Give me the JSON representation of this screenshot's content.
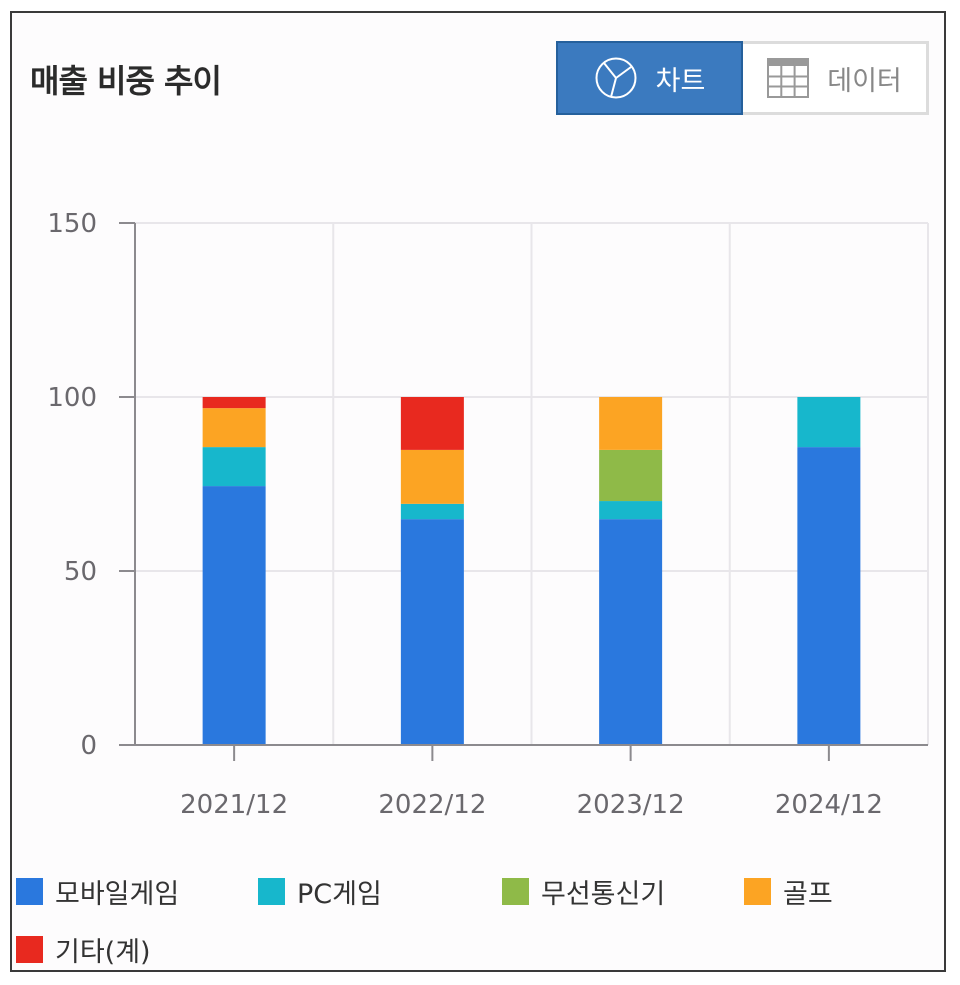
{
  "header": {
    "title": "매출 비중 추이",
    "toggle": {
      "chart_label": "차트",
      "data_label": "데이터",
      "active": "chart"
    }
  },
  "colors": {
    "모바일게임": "#2a78de",
    "PC게임": "#17b7cc",
    "무선통신기": "#8fba48",
    "골프": "#fca423",
    "기타(계)": "#e8291f",
    "accent": "#3b7abf"
  },
  "chart_data": {
    "type": "bar",
    "stacked": true,
    "title": "매출 비중 추이",
    "xlabel": "",
    "ylabel": "",
    "ylim": [
      0,
      150
    ],
    "yticks": [
      0,
      50,
      100,
      150
    ],
    "grid": true,
    "legend_position": "bottom",
    "categories": [
      "2021/12",
      "2022/12",
      "2023/12",
      "2024/12"
    ],
    "series": [
      {
        "name": "모바일게임",
        "color": "#2a78de",
        "values": [
          74.4,
          64.9,
          64.9,
          85.6
        ]
      },
      {
        "name": "PC게임",
        "color": "#17b7cc",
        "values": [
          11.2,
          4.4,
          5.2,
          14.4
        ]
      },
      {
        "name": "무선통신기",
        "color": "#8fba48",
        "values": [
          0,
          0,
          14.7,
          0
        ]
      },
      {
        "name": "골프",
        "color": "#fca423",
        "values": [
          11.2,
          15.5,
          15.2,
          0
        ]
      },
      {
        "name": "기타(계)",
        "color": "#e8291f",
        "values": [
          3.2,
          15.2,
          0,
          0
        ]
      }
    ]
  },
  "legend": {
    "items": [
      {
        "label": "모바일게임",
        "color": "#2a78de"
      },
      {
        "label": "PC게임",
        "color": "#17b7cc"
      },
      {
        "label": "무선통신기",
        "color": "#8fba48"
      },
      {
        "label": "골프",
        "color": "#fca423"
      },
      {
        "label": "기타(계)",
        "color": "#e8291f"
      }
    ]
  }
}
